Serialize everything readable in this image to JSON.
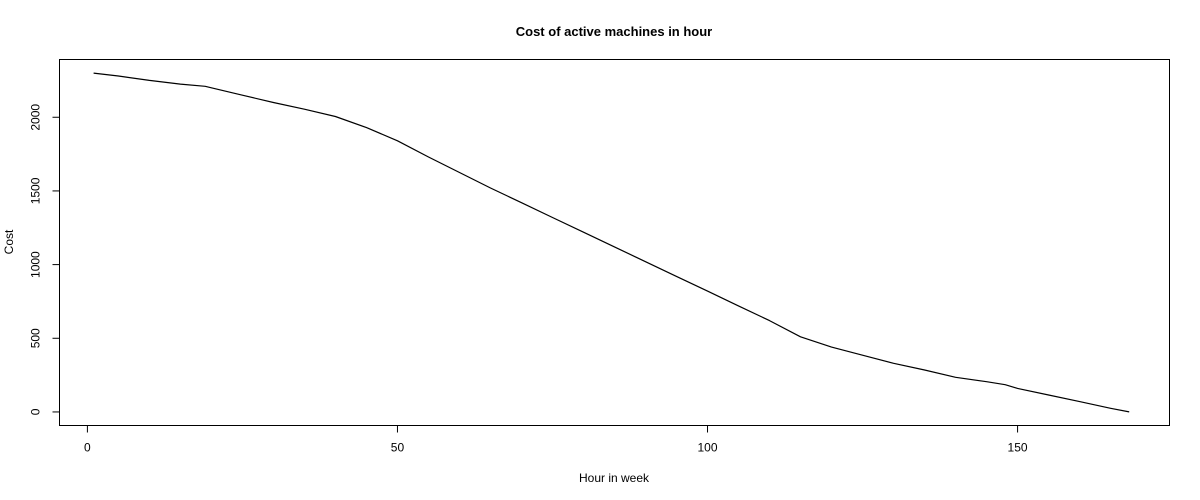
{
  "chart_data": {
    "type": "line",
    "title": "Cost of active machines in hour",
    "xlabel": "Hour in week",
    "ylabel": "Cost",
    "xlim": [
      -4.5,
      174.5
    ],
    "ylim": [
      -92,
      2392
    ],
    "xticks": [
      0,
      50,
      100,
      150
    ],
    "yticks": [
      0,
      500,
      1000,
      1500,
      2000
    ],
    "grid": false,
    "series": [
      {
        "x": [
          1,
          5,
          10,
          15,
          19,
          20,
          25,
          30,
          35,
          40,
          45,
          50,
          55,
          60,
          65,
          70,
          75,
          80,
          85,
          90,
          95,
          100,
          105,
          110,
          115,
          120,
          125,
          130,
          135,
          140,
          145,
          148,
          150,
          155,
          160,
          165,
          168
        ],
        "values": [
          2300,
          2280,
          2250,
          2225,
          2210,
          2200,
          2150,
          2100,
          2055,
          2005,
          1930,
          1840,
          1730,
          1625,
          1520,
          1420,
          1320,
          1220,
          1120,
          1020,
          920,
          820,
          720,
          620,
          510,
          440,
          385,
          330,
          285,
          235,
          205,
          185,
          160,
          115,
          70,
          25,
          0
        ]
      }
    ]
  }
}
